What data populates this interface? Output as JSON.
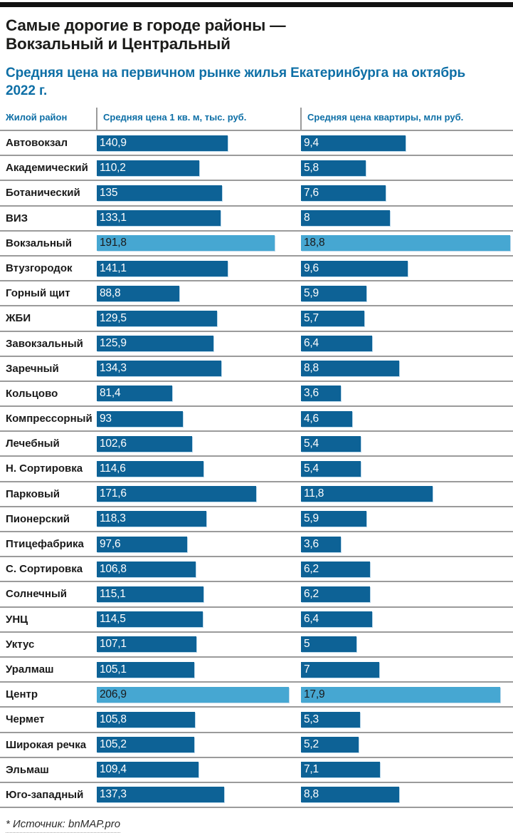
{
  "page": {
    "title_line1": "Самые дорогие в городе районы —",
    "title_line2": "Вокзальный и Центральный",
    "subtitle": "Средняя цена на первичном рынке жилья Екатеринбурга на октябрь 2022 г.",
    "source": "* Источник: bnMAP.pro"
  },
  "colors": {
    "bar_default": "#0d6296",
    "bar_highlight": "#46a7d2",
    "accent_text_blue": "#0e6fa6",
    "separator_gray": "#9b9b9b",
    "top_bar_black": "#111111"
  },
  "chart_data": {
    "type": "bar",
    "title": "Самые дорогие в городе районы — Вокзальный и Центральный",
    "subtitle": "Средняя цена на первичном рынке жилья Екатеринбурга на октябрь 2022 г.",
    "legend_position": "none",
    "grid": false,
    "columns": [
      "Жилой район",
      "Средняя цена 1 кв. м, тыс. руб.",
      "Средняя цена квартиры, млн руб."
    ],
    "axis": {
      "sqm_max": 206.9,
      "flat_max": 18.8
    },
    "highlighted_districts": [
      "Вокзальный",
      "Центр"
    ],
    "rows": [
      {
        "district": "Автовокзал",
        "price_sqm": "140,9",
        "price_sqm_num": 140.9,
        "price_flat": "9,4",
        "price_flat_num": 9.4,
        "highlight": false
      },
      {
        "district": "Академический",
        "price_sqm": "110,2",
        "price_sqm_num": 110.2,
        "price_flat": "5,8",
        "price_flat_num": 5.8,
        "highlight": false
      },
      {
        "district": "Ботанический",
        "price_sqm": "135",
        "price_sqm_num": 135.0,
        "price_flat": "7,6",
        "price_flat_num": 7.6,
        "highlight": false
      },
      {
        "district": "ВИЗ",
        "price_sqm": "133,1",
        "price_sqm_num": 133.1,
        "price_flat": "8",
        "price_flat_num": 8.0,
        "highlight": false
      },
      {
        "district": "Вокзальный",
        "price_sqm": "191,8",
        "price_sqm_num": 191.8,
        "price_flat": "18,8",
        "price_flat_num": 18.8,
        "highlight": true
      },
      {
        "district": "Втузгородок",
        "price_sqm": "141,1",
        "price_sqm_num": 141.1,
        "price_flat": "9,6",
        "price_flat_num": 9.6,
        "highlight": false
      },
      {
        "district": "Горный щит",
        "price_sqm": "88,8",
        "price_sqm_num": 88.8,
        "price_flat": "5,9",
        "price_flat_num": 5.9,
        "highlight": false
      },
      {
        "district": "ЖБИ",
        "price_sqm": "129,5",
        "price_sqm_num": 129.5,
        "price_flat": "5,7",
        "price_flat_num": 5.7,
        "highlight": false
      },
      {
        "district": "Завокзальный",
        "price_sqm": "125,9",
        "price_sqm_num": 125.9,
        "price_flat": "6,4",
        "price_flat_num": 6.4,
        "highlight": false
      },
      {
        "district": "Заречный",
        "price_sqm": "134,3",
        "price_sqm_num": 134.3,
        "price_flat": "8,8",
        "price_flat_num": 8.8,
        "highlight": false
      },
      {
        "district": "Кольцово",
        "price_sqm": "81,4",
        "price_sqm_num": 81.4,
        "price_flat": "3,6",
        "price_flat_num": 3.6,
        "highlight": false
      },
      {
        "district": "Компрессорный",
        "price_sqm": "93",
        "price_sqm_num": 93.0,
        "price_flat": "4,6",
        "price_flat_num": 4.6,
        "highlight": false
      },
      {
        "district": "Лечебный",
        "price_sqm": "102,6",
        "price_sqm_num": 102.6,
        "price_flat": "5,4",
        "price_flat_num": 5.4,
        "highlight": false
      },
      {
        "district": "Н. Сортировка",
        "price_sqm": "114,6",
        "price_sqm_num": 114.6,
        "price_flat": "5,4",
        "price_flat_num": 5.4,
        "highlight": false
      },
      {
        "district": "Парковый",
        "price_sqm": "171,6",
        "price_sqm_num": 171.6,
        "price_flat": "11,8",
        "price_flat_num": 11.8,
        "highlight": false
      },
      {
        "district": "Пионерский",
        "price_sqm": "118,3",
        "price_sqm_num": 118.3,
        "price_flat": "5,9",
        "price_flat_num": 5.9,
        "highlight": false
      },
      {
        "district": "Птицефабрика",
        "price_sqm": "97,6",
        "price_sqm_num": 97.6,
        "price_flat": "3,6",
        "price_flat_num": 3.6,
        "highlight": false
      },
      {
        "district": "С. Сортировка",
        "price_sqm": "106,8",
        "price_sqm_num": 106.8,
        "price_flat": "6,2",
        "price_flat_num": 6.2,
        "highlight": false
      },
      {
        "district": "Солнечный",
        "price_sqm": "115,1",
        "price_sqm_num": 115.1,
        "price_flat": "6,2",
        "price_flat_num": 6.2,
        "highlight": false
      },
      {
        "district": "УНЦ",
        "price_sqm": "114,5",
        "price_sqm_num": 114.5,
        "price_flat": "6,4",
        "price_flat_num": 6.4,
        "highlight": false
      },
      {
        "district": "Уктус",
        "price_sqm": "107,1",
        "price_sqm_num": 107.1,
        "price_flat": "5",
        "price_flat_num": 5.0,
        "highlight": false
      },
      {
        "district": "Уралмаш",
        "price_sqm": "105,1",
        "price_sqm_num": 105.1,
        "price_flat": "7",
        "price_flat_num": 7.0,
        "highlight": false
      },
      {
        "district": "Центр",
        "price_sqm": "206,9",
        "price_sqm_num": 206.9,
        "price_flat": "17,9",
        "price_flat_num": 17.9,
        "highlight": true
      },
      {
        "district": "Чермет",
        "price_sqm": "105,8",
        "price_sqm_num": 105.8,
        "price_flat": "5,3",
        "price_flat_num": 5.3,
        "highlight": false
      },
      {
        "district": "Широкая речка",
        "price_sqm": "105,2",
        "price_sqm_num": 105.2,
        "price_flat": "5,2",
        "price_flat_num": 5.2,
        "highlight": false
      },
      {
        "district": "Эльмаш",
        "price_sqm": "109,4",
        "price_sqm_num": 109.4,
        "price_flat": "7,1",
        "price_flat_num": 7.1,
        "highlight": false
      },
      {
        "district": "Юго-западный",
        "price_sqm": "137,3",
        "price_sqm_num": 137.3,
        "price_flat": "8,8",
        "price_flat_num": 8.8,
        "highlight": false
      }
    ]
  }
}
